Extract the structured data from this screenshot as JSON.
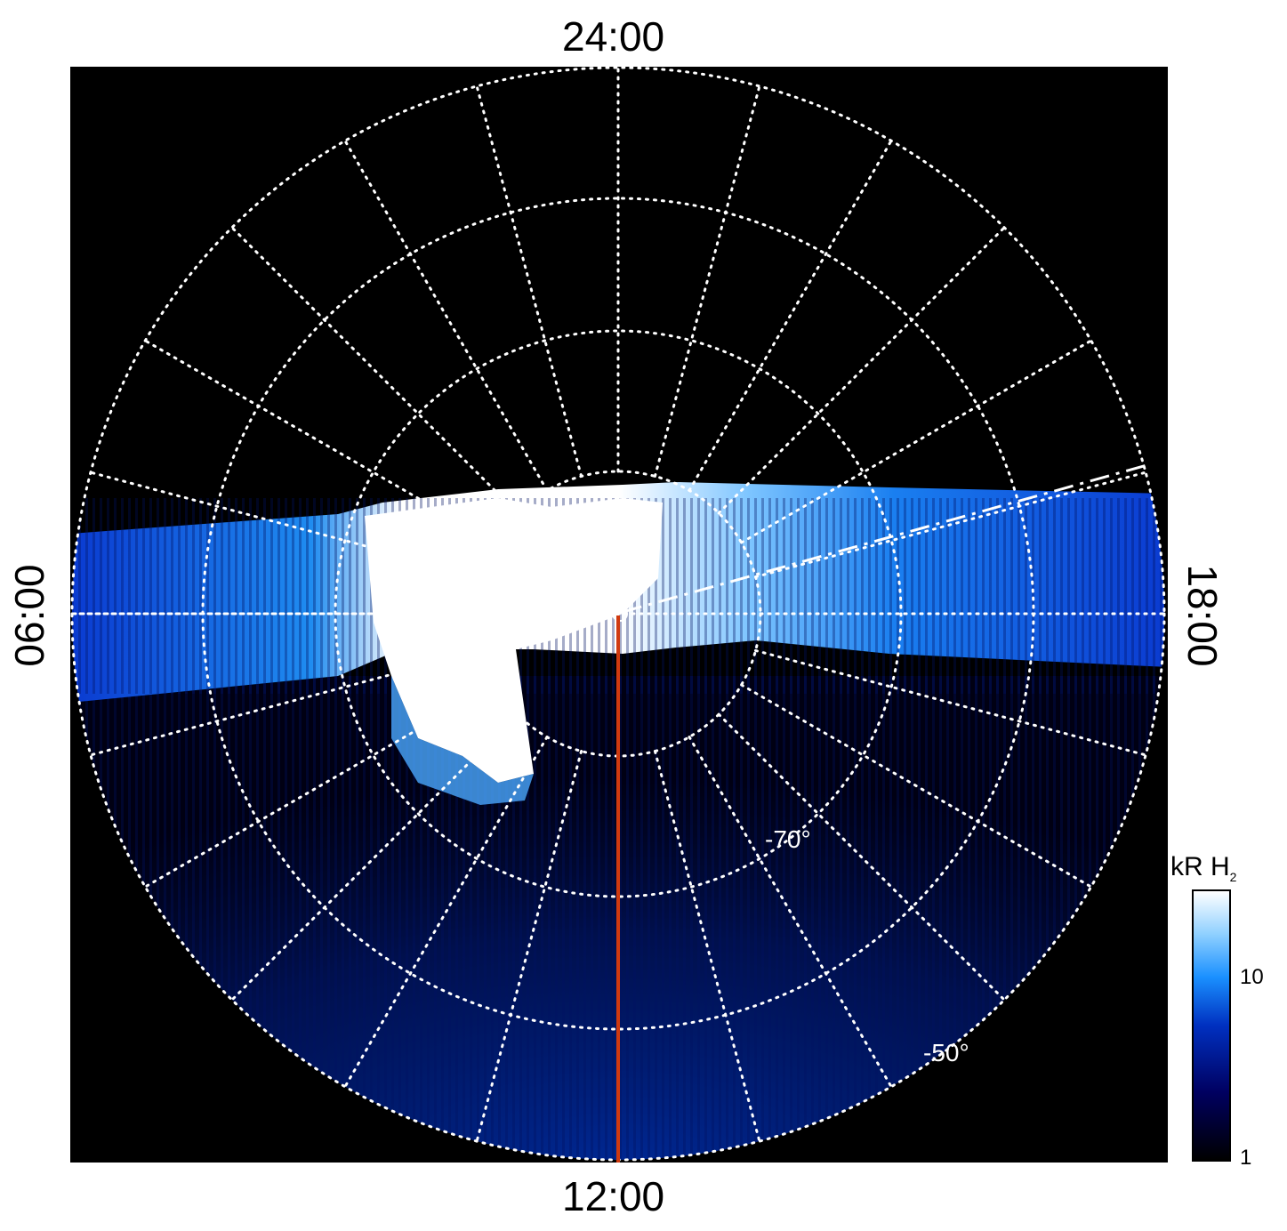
{
  "local_time_labels": {
    "top": "24:00",
    "bottom": "12:00",
    "left": "06:00",
    "right": "18:00"
  },
  "latitude_labels": [
    "-70°",
    "-50°"
  ],
  "colorbar": {
    "title": "kR H",
    "title_subscript": "2",
    "tick_labels": [
      "10",
      "1"
    ],
    "scale": "log",
    "colors": [
      "#000000",
      "#000060",
      "#0030c0",
      "#1a90ff",
      "#8fd0ff",
      "#ffffff"
    ]
  },
  "colors": {
    "background": "#000000",
    "grid": "#ffffff",
    "meridian_line": "#d03a10",
    "aurora_bright": "#ffffff",
    "aurora_mid": "#1a90ff",
    "aurora_dim": "#001a80"
  }
}
